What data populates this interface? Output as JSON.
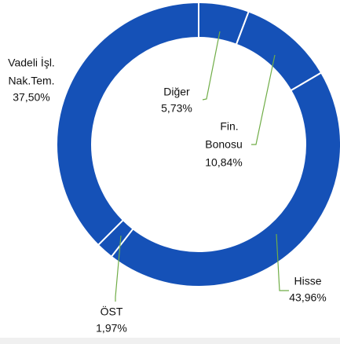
{
  "chart_data": {
    "type": "donut",
    "categories": [
      [
        "Diğer"
      ],
      [
        "Fin.",
        "Bonosu"
      ],
      [
        "Hisse"
      ],
      [
        "ÖST"
      ],
      [
        "Vadeli İşl.",
        "Nak.Tem."
      ]
    ],
    "values": [
      5.73,
      10.84,
      43.96,
      1.97,
      37.5
    ],
    "value_labels": [
      "5,73%",
      "10,84%",
      "43,96%",
      "1,97%",
      "37,50%"
    ],
    "color": "#1551b7",
    "leader_color": "#70ad47"
  }
}
